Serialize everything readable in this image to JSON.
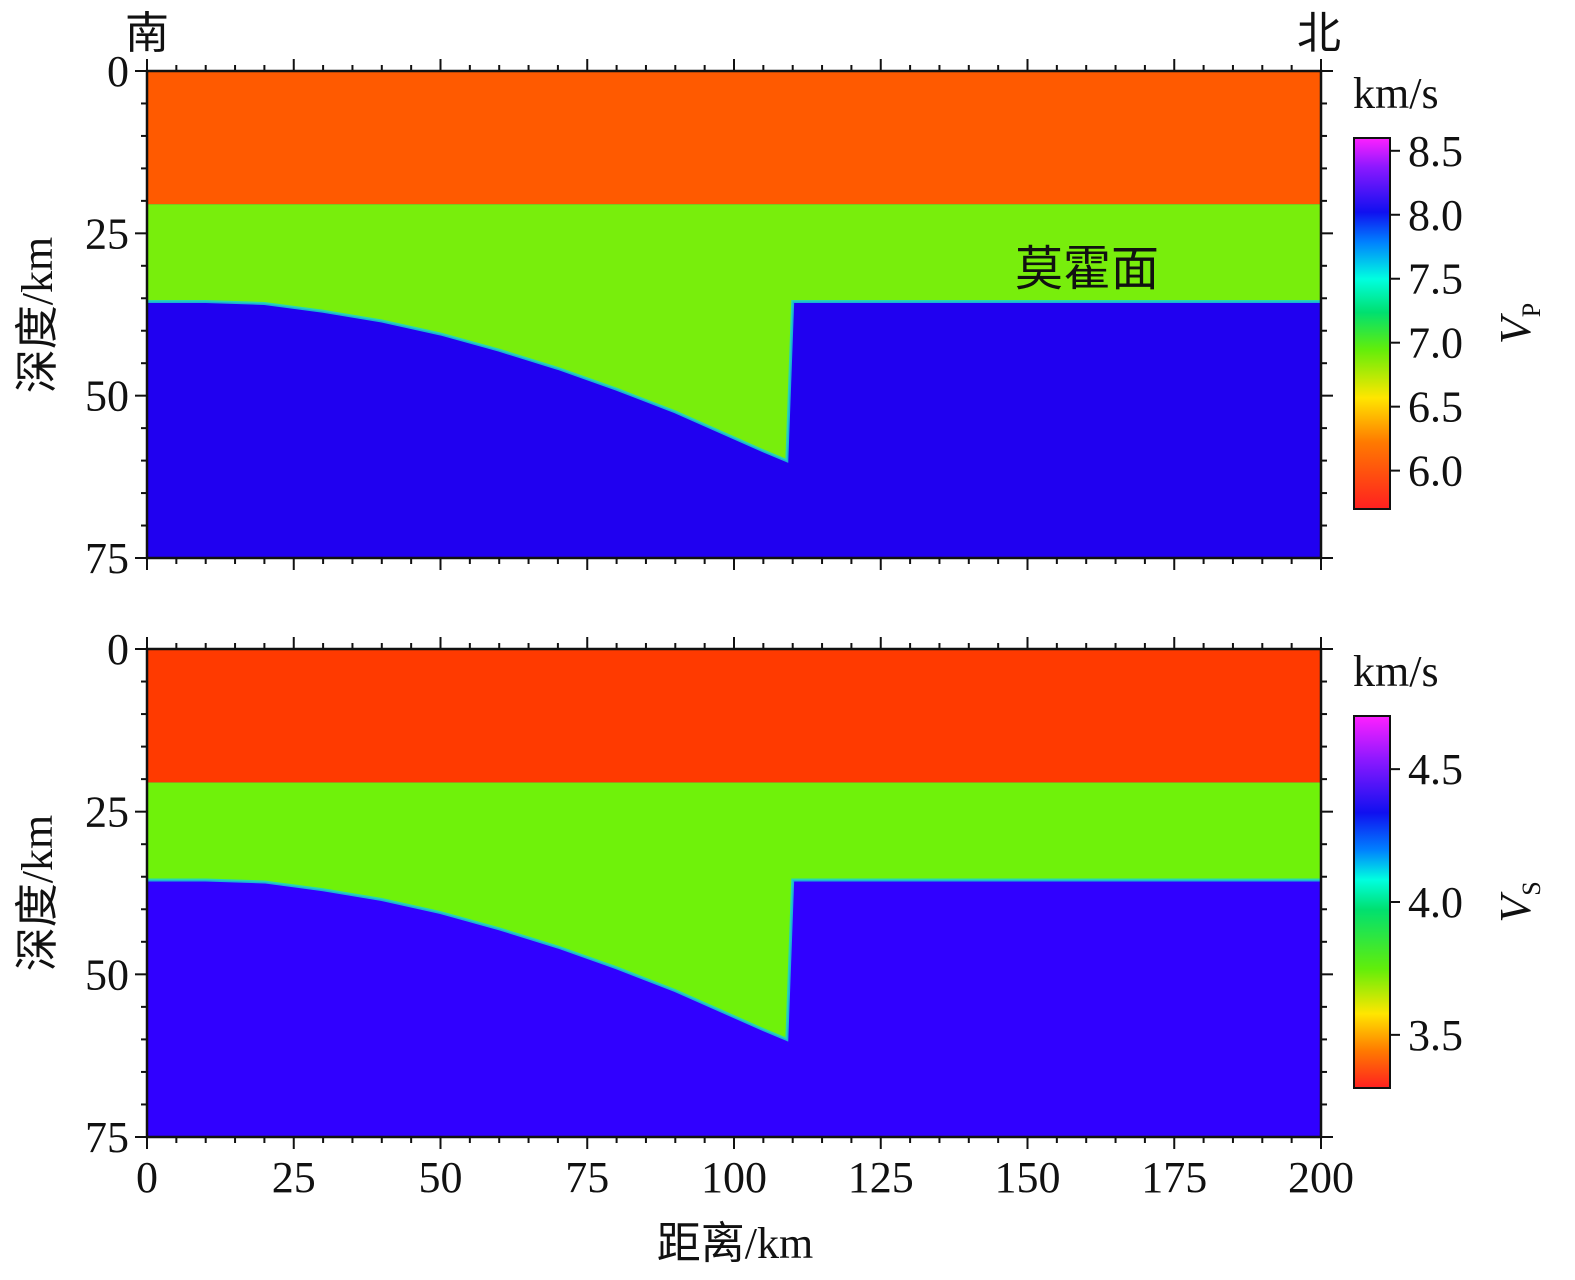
{
  "figure": {
    "direction_south": "南",
    "direction_north": "北",
    "xlabel": "距离/km",
    "ylabel": "深度/km",
    "annotation": "莫霍面"
  },
  "chart_data": [
    {
      "type": "heatmap",
      "name": "vp-panel",
      "x_ticks": [
        0,
        25,
        50,
        75,
        100,
        125,
        150,
        175,
        200
      ],
      "y_ticks": [
        0,
        25,
        50,
        75
      ],
      "xlim": [
        0,
        200
      ],
      "ylim": [
        75,
        0
      ],
      "ylabel": "深度/km",
      "colorbar": {
        "unit": "km/s",
        "label_main": "V",
        "label_sub": "P",
        "range": [
          5.7,
          8.6
        ],
        "ticks": [
          "6.0",
          "6.5",
          "7.0",
          "7.5",
          "8.0",
          "8.5"
        ],
        "tick_values": [
          6.0,
          6.5,
          7.0,
          7.5,
          8.0,
          8.5
        ]
      },
      "layers": [
        {
          "name": "upper-crust",
          "top_km": 0,
          "bottom_km": 20.5,
          "color": "#ff5a00"
        },
        {
          "name": "lower-crust",
          "color": "#78ee0c"
        },
        {
          "name": "mantle",
          "bottom_km": 75,
          "color": "#2000f0"
        }
      ],
      "moho_profile": {
        "x_km": [
          0,
          10,
          20,
          30,
          40,
          50,
          60,
          70,
          80,
          90,
          100,
          105,
          109,
          110,
          150,
          200
        ],
        "depth_km": [
          35.5,
          35.5,
          35.8,
          37.0,
          38.5,
          40.5,
          43.0,
          45.8,
          49.0,
          52.5,
          56.5,
          58.5,
          60.0,
          35.5,
          35.5,
          35.5
        ]
      }
    },
    {
      "type": "heatmap",
      "name": "vs-panel",
      "x_ticks": [
        0,
        25,
        50,
        75,
        100,
        125,
        150,
        175,
        200
      ],
      "y_ticks": [
        0,
        25,
        50,
        75
      ],
      "xlim": [
        0,
        200
      ],
      "ylim": [
        75,
        0
      ],
      "xlabel": "距离/km",
      "ylabel": "深度/km",
      "colorbar": {
        "unit": "km/s",
        "label_main": "V",
        "label_sub": "S",
        "range": [
          3.3,
          4.7
        ],
        "ticks": [
          "3.5",
          "4.0",
          "4.5"
        ],
        "tick_values": [
          3.5,
          4.0,
          4.5
        ]
      },
      "layers": [
        {
          "name": "upper-crust",
          "top_km": 0,
          "bottom_km": 20.5,
          "color": "#ff3a00"
        },
        {
          "name": "lower-crust",
          "color": "#6ff20a"
        },
        {
          "name": "mantle",
          "bottom_km": 75,
          "color": "#3000ff"
        }
      ],
      "moho_profile": {
        "x_km": [
          0,
          10,
          20,
          30,
          40,
          50,
          60,
          70,
          80,
          90,
          100,
          105,
          109,
          110,
          150,
          200
        ],
        "depth_km": [
          35.5,
          35.5,
          35.8,
          37.0,
          38.5,
          40.5,
          43.0,
          45.8,
          49.0,
          52.5,
          56.5,
          58.5,
          60.0,
          35.5,
          35.5,
          35.5
        ]
      }
    }
  ]
}
